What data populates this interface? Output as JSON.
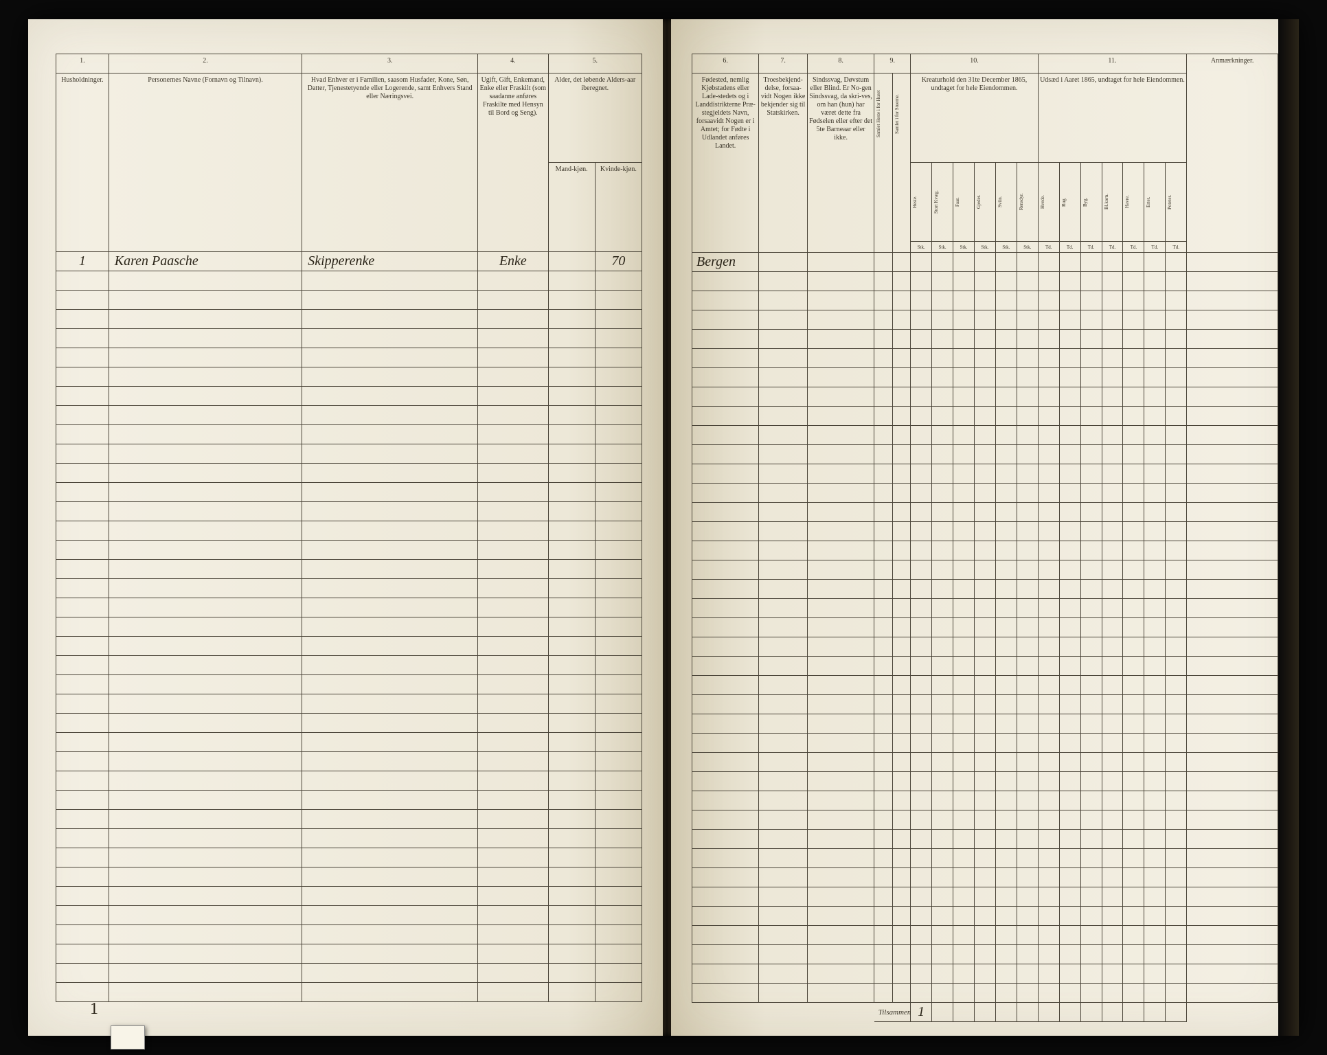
{
  "meta": {
    "document_type": "census_ledger",
    "year_reference": "1865",
    "language": "Norwegian (Dano-Norwegian)"
  },
  "left_page": {
    "columns": {
      "c1": {
        "num": "1.",
        "header": "Husholdninger."
      },
      "c2": {
        "num": "2.",
        "header": "Personernes Navne (Fornavn og Tilnavn)."
      },
      "c3": {
        "num": "3.",
        "header": "Hvad Enhver er i Familien, saasom Husfader, Kone, Søn, Datter, Tjenestetyende eller Logerende, samt Enhvers Stand eller Næringsvei."
      },
      "c4": {
        "num": "4.",
        "header": "Ugift, Gift, Enkemand, Enke eller Fraskilt (som saadanne anføres Fraskilte med Hensyn til Bord og Seng)."
      },
      "c5": {
        "num": "5.",
        "header": "Alder, det løbende Alders-aar iberegnet.",
        "sub_a": "Mand-kjøn.",
        "sub_b": "Kvinde-kjøn."
      }
    },
    "data_row": {
      "col1": "1",
      "col2": "Karen Paasche",
      "col3": "Skipperenke",
      "col4": "Enke",
      "col5b": "70"
    },
    "bottom_mark": "1"
  },
  "right_page": {
    "columns": {
      "c6": {
        "num": "6.",
        "header": "Fødested, nemlig Kjøbstadens eller Lade-stedets og i Landdistrikterne Præ-stegjeldets Navn, forsaavidt Nogen er i Amtet; for Fødte i Udlandet anføres Landet."
      },
      "c7": {
        "num": "7.",
        "header": "Troesbekjend-delse, forsaa-vidt Nogen ikke bekjender sig til Statskirken."
      },
      "c8": {
        "num": "8.",
        "header": "Sindssvag, Døvstum eller Blind. Er No-gen Sindssvag, da skri-ves, om han (hun) har været dette fra Fødselen eller efter det 5te Barneaar eller ikke."
      },
      "c9": {
        "num": "9.",
        "header_a": "Samlet Heste i for Huset",
        "header_b": "Samlet i for Stuerne."
      },
      "c10": {
        "num": "10.",
        "header": "Kreaturhold den 31te December 1865, undtaget for hele Eiendommen.",
        "subs": [
          "Heste.",
          "Stort Kvæg.",
          "Faar.",
          "Gjeder.",
          "Sviin.",
          "Rensdyr."
        ],
        "unit": "Stk."
      },
      "c11": {
        "num": "11.",
        "header": "Udsæd i Aaret 1865, undtaget for hele Eiendommen.",
        "subs": [
          "Hvede.",
          "Rug.",
          "Byg.",
          "Bl.korn.",
          "Havre.",
          "Erter.",
          "Poteter."
        ],
        "unit": "Td."
      },
      "remarks": "Anmærkninger."
    },
    "data_row": {
      "col6": "Bergen"
    },
    "footer_label": "Tilsammen",
    "footer_mark": "1"
  },
  "empty_rows": 38,
  "colors": {
    "paper": "#f0ebd8",
    "ink": "#3a3428",
    "rule": "#4a4438",
    "handwriting": "#2a2418"
  }
}
